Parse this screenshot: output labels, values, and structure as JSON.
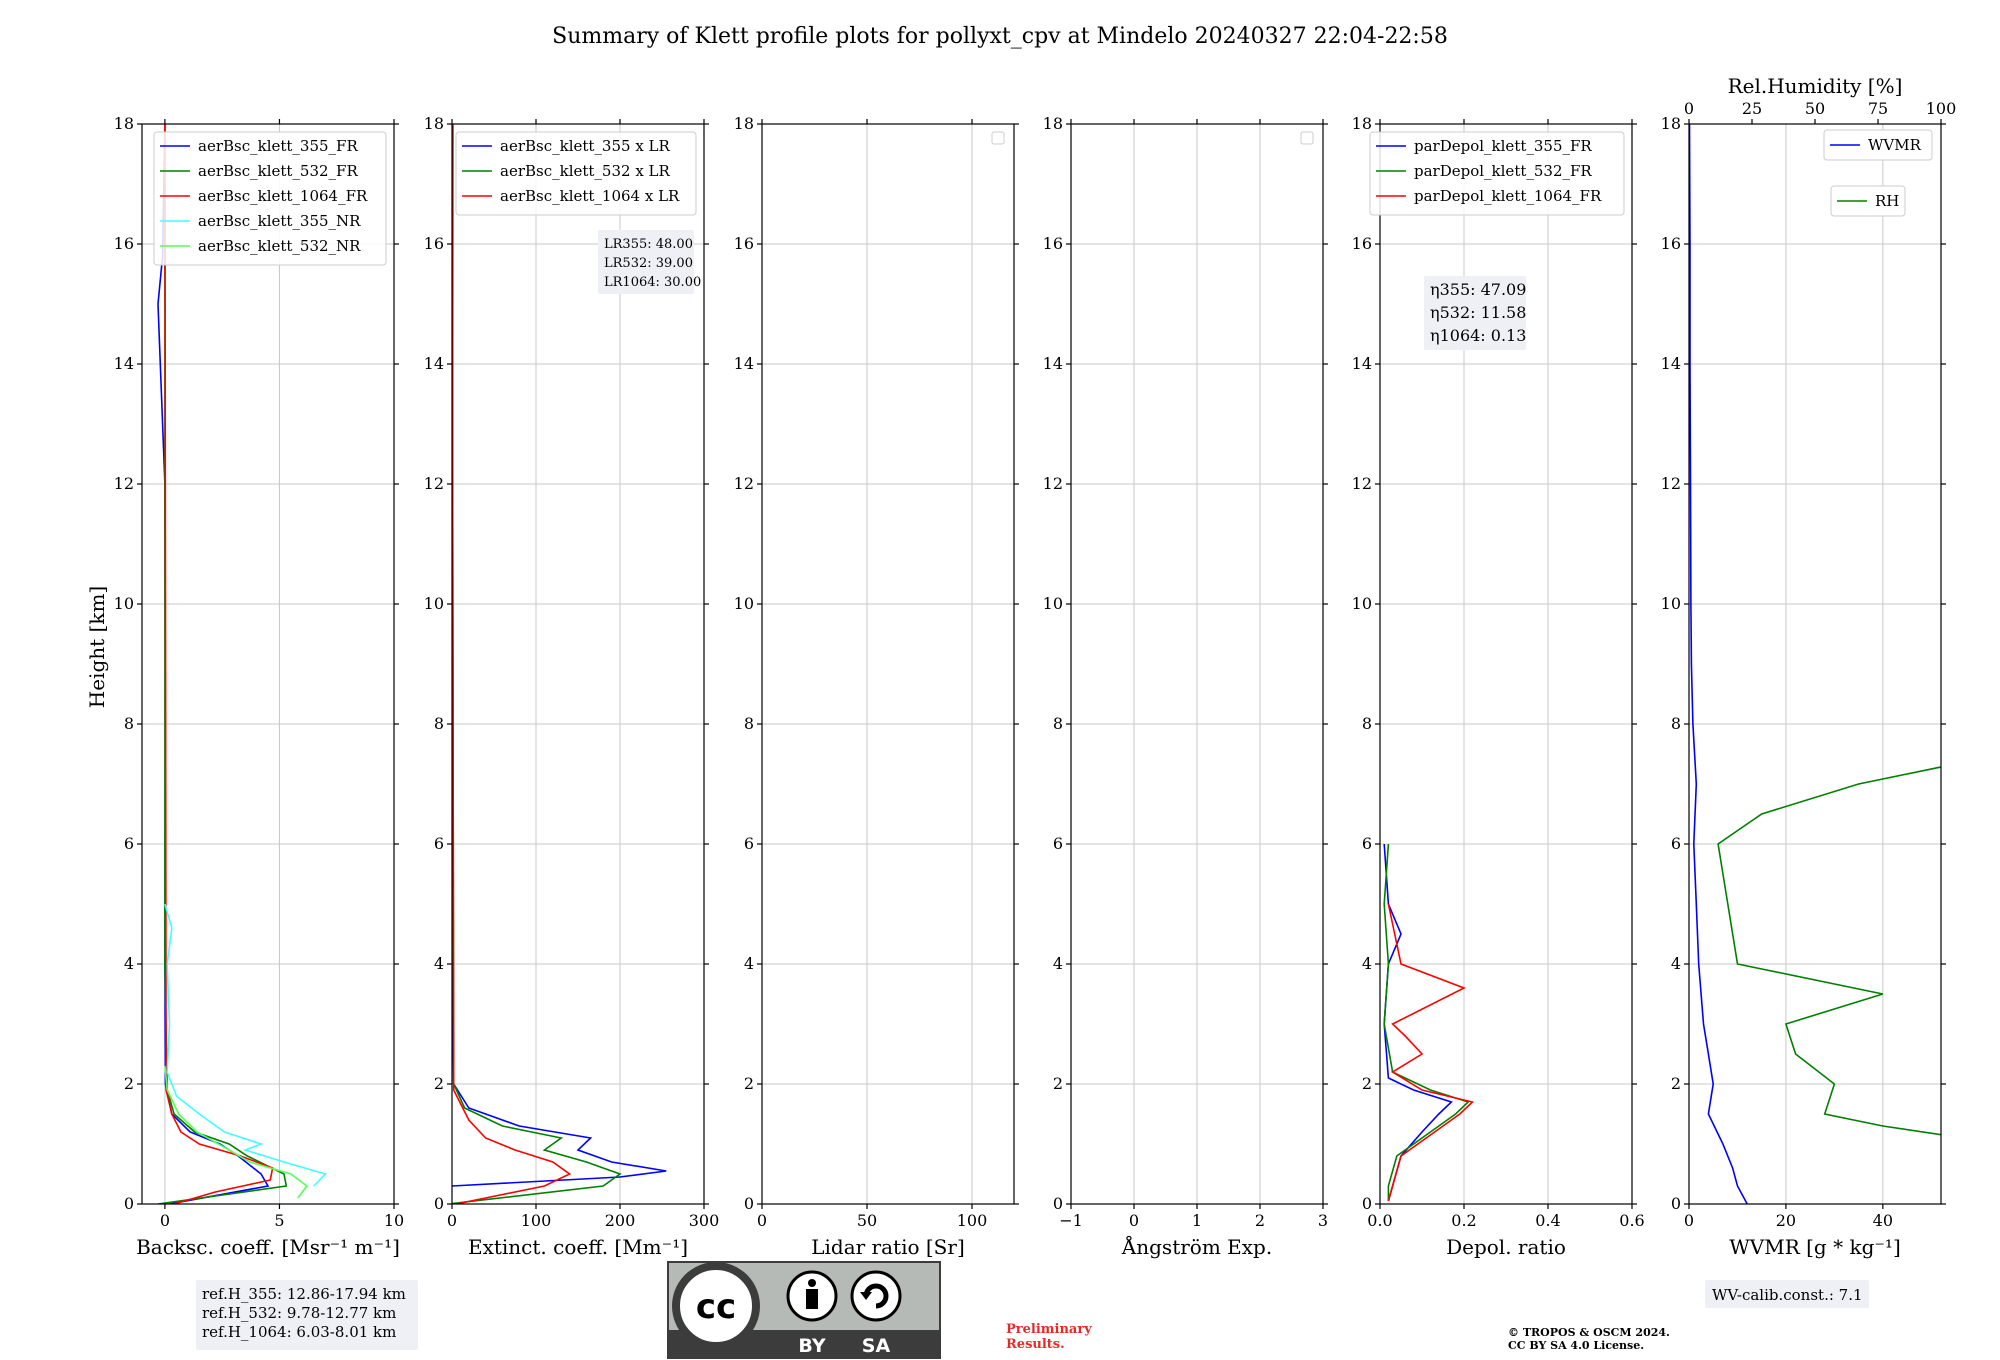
{
  "title": "Summary of Klett profile plots for pollyxt_cpv at Mindelo 20240327 22:04-22:58",
  "ylabel": "Height [km]",
  "panels_text": {
    "bsc": {
      "xlabel": "Backsc. coeff. [Msr⁻¹ m⁻¹]"
    },
    "ext": {
      "xlabel": "Extinct. coeff. [Mm⁻¹]",
      "lr_lines": [
        "LR355: 48.00",
        "LR532: 39.00",
        "LR1064: 30.00"
      ]
    },
    "lr": {
      "xlabel": "Lidar ratio [Sr]"
    },
    "ang": {
      "xlabel": "Ångström Exp."
    },
    "dep": {
      "xlabel": "Depol. ratio",
      "eta_lines": [
        "η355: 47.09",
        "η532: 11.58",
        "η1064: 0.13"
      ]
    },
    "wv": {
      "xlabel": "WVMR [g * kg⁻¹]",
      "top_label": "Rel.Humidity [%]"
    }
  },
  "refh": [
    "ref.H_355: 12.86-17.94 km",
    "ref.H_532: 9.78-12.77 km",
    "ref.H_1064: 6.03-8.01 km"
  ],
  "wv_calib": "WV-calib.const.: 7.1",
  "license_badge": {
    "by": "BY",
    "sa": "SA"
  },
  "preliminary": [
    "Preliminary",
    "Results."
  ],
  "copyright": [
    "© TROPOS & OSCM 2024.",
    "CC BY SA 4.0 License."
  ],
  "colors": {
    "blue": "#0000ff",
    "green": "#008000",
    "red": "#ff0000",
    "cyan": "#40ffff",
    "lightgreen": "#55ff55",
    "grid": "#c8c8c8",
    "legend_bg": "#eef0f6",
    "badge_gray": "#b6bab6",
    "badge_dark": "#3c3c3c",
    "preliminary": "#e8282b"
  },
  "chart_data": [
    {
      "id": "bsc",
      "type": "line",
      "xlim": [
        -1,
        10
      ],
      "ylim": [
        0,
        18
      ],
      "xticks": [
        0,
        5,
        10
      ],
      "yticks": [
        0,
        2,
        4,
        6,
        8,
        10,
        12,
        14,
        16,
        18
      ],
      "grid": true,
      "legend_position": "top-right",
      "series": [
        {
          "name": "aerBsc_klett_355_FR",
          "color": "#0000ff",
          "profile": [
            [
              0.0,
              0.2
            ],
            [
              0.3,
              4.5
            ],
            [
              0.5,
              4.2
            ],
            [
              0.8,
              3.2
            ],
            [
              1.0,
              2.4
            ],
            [
              1.2,
              1.1
            ],
            [
              1.5,
              0.3
            ],
            [
              2.0,
              0.02
            ],
            [
              4.0,
              0.0
            ],
            [
              8.0,
              0.02
            ],
            [
              12.0,
              0.0
            ],
            [
              15.0,
              -0.3
            ],
            [
              15.8,
              -0.1
            ],
            [
              18.0,
              0.0
            ]
          ]
        },
        {
          "name": "aerBsc_klett_532_FR",
          "color": "#008000",
          "profile": [
            [
              0.0,
              -0.3
            ],
            [
              0.3,
              5.3
            ],
            [
              0.5,
              5.2
            ],
            [
              0.8,
              3.6
            ],
            [
              1.0,
              2.8
            ],
            [
              1.2,
              1.3
            ],
            [
              1.5,
              0.4
            ],
            [
              1.9,
              0.1
            ],
            [
              4.0,
              0.0
            ],
            [
              18.0,
              0.0
            ]
          ]
        },
        {
          "name": "aerBsc_klett_1064_FR",
          "color": "#ff0000",
          "profile": [
            [
              0.0,
              0.4
            ],
            [
              0.2,
              2.2
            ],
            [
              0.4,
              4.6
            ],
            [
              0.6,
              4.7
            ],
            [
              0.8,
              3.3
            ],
            [
              1.0,
              1.5
            ],
            [
              1.2,
              0.7
            ],
            [
              1.5,
              0.3
            ],
            [
              1.9,
              0.05
            ],
            [
              18.0,
              0.0
            ]
          ]
        },
        {
          "name": "aerBsc_klett_355_NR",
          "color": "#40ffff",
          "profile": [
            [
              0.3,
              6.5
            ],
            [
              0.5,
              7.0
            ],
            [
              0.7,
              5.2
            ],
            [
              0.9,
              3.5
            ],
            [
              1.0,
              4.2
            ],
            [
              1.2,
              2.6
            ],
            [
              1.5,
              1.5
            ],
            [
              1.8,
              0.5
            ],
            [
              2.2,
              0.1
            ],
            [
              3.0,
              0.2
            ],
            [
              4.0,
              0.1
            ],
            [
              4.6,
              0.3
            ],
            [
              5.0,
              0.0
            ]
          ]
        },
        {
          "name": "aerBsc_klett_532_NR",
          "color": "#55ff55",
          "profile": [
            [
              0.1,
              5.8
            ],
            [
              0.3,
              6.2
            ],
            [
              0.5,
              5.5
            ],
            [
              0.7,
              3.7
            ],
            [
              0.9,
              2.8
            ],
            [
              1.2,
              1.4
            ],
            [
              1.5,
              0.6
            ],
            [
              1.9,
              0.1
            ],
            [
              2.3,
              0.0
            ]
          ]
        }
      ]
    },
    {
      "id": "ext",
      "type": "line",
      "xlim": [
        0,
        300
      ],
      "ylim": [
        0,
        18
      ],
      "xticks": [
        0,
        100,
        200,
        300
      ],
      "yticks": [
        0,
        2,
        4,
        6,
        8,
        10,
        12,
        14,
        16,
        18
      ],
      "grid": true,
      "legend_position": "top-right",
      "series": [
        {
          "name": "aerBsc_klett_355 x LR",
          "color": "#0000ff",
          "profile": [
            [
              0.3,
              0
            ],
            [
              0.45,
              200
            ],
            [
              0.55,
              255
            ],
            [
              0.7,
              190
            ],
            [
              0.9,
              150
            ],
            [
              1.1,
              165
            ],
            [
              1.3,
              80
            ],
            [
              1.6,
              20
            ],
            [
              2.0,
              2
            ],
            [
              4.0,
              0
            ],
            [
              18.0,
              1
            ]
          ]
        },
        {
          "name": "aerBsc_klett_532 x LR",
          "color": "#008000",
          "profile": [
            [
              0.0,
              -5
            ],
            [
              0.3,
              180
            ],
            [
              0.5,
              200
            ],
            [
              0.7,
              160
            ],
            [
              0.9,
              110
            ],
            [
              1.1,
              130
            ],
            [
              1.3,
              60
            ],
            [
              1.6,
              15
            ],
            [
              2.0,
              2
            ],
            [
              18.0,
              0
            ]
          ]
        },
        {
          "name": "aerBsc_klett_1064 x LR",
          "color": "#ff0000",
          "profile": [
            [
              0.0,
              5
            ],
            [
              0.3,
              110
            ],
            [
              0.5,
              140
            ],
            [
              0.7,
              120
            ],
            [
              0.9,
              75
            ],
            [
              1.1,
              40
            ],
            [
              1.4,
              20
            ],
            [
              1.9,
              2
            ],
            [
              18.0,
              0
            ]
          ]
        }
      ]
    },
    {
      "id": "lr",
      "type": "line",
      "xlim": [
        0,
        120
      ],
      "ylim": [
        0,
        18
      ],
      "xticks": [
        0,
        50,
        100
      ],
      "yticks": [
        0,
        2,
        4,
        6,
        8,
        10,
        12,
        14,
        16,
        18
      ],
      "grid": true,
      "legend_position": "top-right",
      "series": []
    },
    {
      "id": "ang",
      "type": "line",
      "xlim": [
        -1,
        3
      ],
      "ylim": [
        0,
        18
      ],
      "xticks": [
        -1,
        0,
        1,
        2,
        3
      ],
      "yticks": [
        0,
        2,
        4,
        6,
        8,
        10,
        12,
        14,
        16,
        18
      ],
      "grid": true,
      "legend_position": "top-right",
      "series": []
    },
    {
      "id": "dep",
      "type": "line",
      "xlim": [
        0,
        0.6
      ],
      "ylim": [
        0,
        18
      ],
      "xticks": [
        0.0,
        0.2,
        0.4,
        0.6
      ],
      "yticks": [
        0,
        2,
        4,
        6,
        8,
        10,
        12,
        14,
        16,
        18
      ],
      "grid": true,
      "legend_position": "top-right",
      "series": [
        {
          "name": "parDepol_klett_355_FR",
          "color": "#0000ff",
          "profile": [
            [
              0.05,
              0.02
            ],
            [
              0.3,
              0.03
            ],
            [
              0.8,
              0.05
            ],
            [
              1.2,
              0.1
            ],
            [
              1.5,
              0.14
            ],
            [
              1.7,
              0.17
            ],
            [
              1.9,
              0.08
            ],
            [
              2.1,
              0.02
            ],
            [
              3.0,
              0.01
            ],
            [
              4.0,
              0.02
            ],
            [
              4.5,
              0.05
            ],
            [
              5.0,
              0.02
            ],
            [
              6.0,
              0.01
            ]
          ]
        },
        {
          "name": "parDepol_klett_532_FR",
          "color": "#008000",
          "profile": [
            [
              0.05,
              0.02
            ],
            [
              0.3,
              0.02
            ],
            [
              0.8,
              0.04
            ],
            [
              1.2,
              0.12
            ],
            [
              1.5,
              0.18
            ],
            [
              1.7,
              0.21
            ],
            [
              1.9,
              0.12
            ],
            [
              2.2,
              0.03
            ],
            [
              3.0,
              0.01
            ],
            [
              4.0,
              0.02
            ],
            [
              5.0,
              0.01
            ],
            [
              6.0,
              0.02
            ]
          ]
        },
        {
          "name": "parDepol_klett_1064_FR",
          "color": "#ff0000",
          "profile": [
            [
              0.05,
              0.02
            ],
            [
              0.3,
              0.03
            ],
            [
              0.8,
              0.05
            ],
            [
              1.2,
              0.13
            ],
            [
              1.5,
              0.19
            ],
            [
              1.7,
              0.22
            ],
            [
              1.9,
              0.1
            ],
            [
              2.2,
              0.03
            ],
            [
              2.5,
              0.1
            ],
            [
              2.8,
              0.06
            ],
            [
              3.0,
              0.03
            ],
            [
              3.6,
              0.2
            ],
            [
              4.0,
              0.05
            ],
            [
              5.0,
              0.02
            ]
          ]
        }
      ]
    },
    {
      "id": "wv",
      "type": "line",
      "xlim": [
        0,
        52
      ],
      "ylim": [
        0,
        18
      ],
      "xticks": [
        0,
        20,
        40
      ],
      "yticks": [
        0,
        2,
        4,
        6,
        8,
        10,
        12,
        14,
        16,
        18
      ],
      "top_xlim": [
        0,
        100
      ],
      "top_xticks": [
        0,
        25,
        50,
        75,
        100
      ],
      "grid": true,
      "legend_position": "top-right",
      "series": [
        {
          "name": "WVMR",
          "color": "#0000ff",
          "profile": [
            [
              0.0,
              12
            ],
            [
              0.3,
              10
            ],
            [
              0.6,
              9
            ],
            [
              1.0,
              7
            ],
            [
              1.5,
              4
            ],
            [
              2.0,
              5
            ],
            [
              2.5,
              4
            ],
            [
              3.0,
              3
            ],
            [
              3.5,
              2.5
            ],
            [
              4.0,
              2
            ],
            [
              5.0,
              1.5
            ],
            [
              6.0,
              1
            ],
            [
              7.0,
              1.5
            ],
            [
              8.0,
              0.8
            ],
            [
              9.0,
              0.5
            ],
            [
              10.0,
              0.4
            ],
            [
              12.0,
              0.3
            ],
            [
              14.0,
              0.2
            ],
            [
              16.0,
              0.2
            ],
            [
              18.0,
              0.1
            ]
          ]
        },
        {
          "name": "RH",
          "color": "#008000",
          "profile": [
            [
              0.0,
              70
            ],
            [
              0.3,
              75
            ],
            [
              0.6,
              72
            ],
            [
              1.0,
              65
            ],
            [
              1.3,
              40
            ],
            [
              1.5,
              28
            ],
            [
              2.0,
              30
            ],
            [
              2.5,
              22
            ],
            [
              3.0,
              20
            ],
            [
              3.5,
              40
            ],
            [
              4.0,
              10
            ],
            [
              5.0,
              8
            ],
            [
              6.0,
              6
            ],
            [
              6.5,
              15
            ],
            [
              7.0,
              35
            ],
            [
              7.5,
              65
            ],
            [
              8.0,
              55
            ],
            [
              9.0,
              90
            ],
            [
              10.0,
              85
            ],
            [
              11.0,
              95
            ],
            [
              11.3,
              100
            ]
          ]
        }
      ]
    }
  ]
}
